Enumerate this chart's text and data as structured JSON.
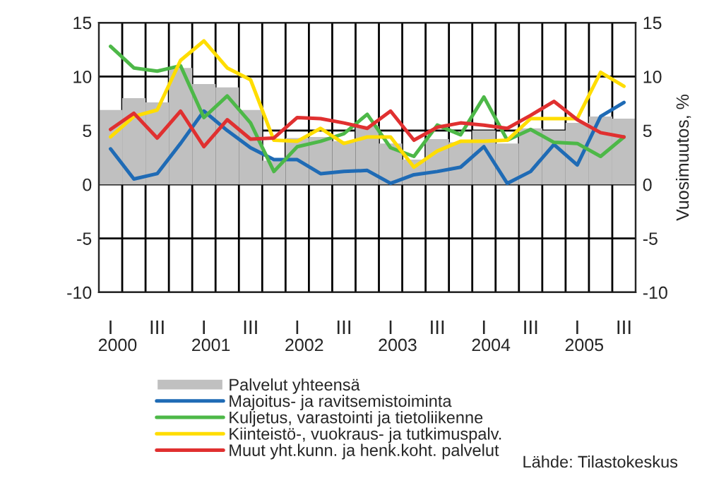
{
  "chart_data": {
    "type": "line",
    "y2label": "Vuosimuutos, %",
    "categories": [
      "I",
      null,
      "III",
      null,
      "I",
      null,
      "III",
      null,
      "I",
      null,
      "III",
      null,
      "I",
      null,
      "III",
      null,
      "I",
      null,
      "III",
      null,
      "I",
      null,
      "III"
    ],
    "series": [
      {
        "name": "Palvelut yhteensä",
        "type": "bar",
        "color": "#c0c0c0",
        "values": [
          6.9,
          8.0,
          7.6,
          10.8,
          9.3,
          9.0,
          6.9,
          2.2,
          4.3,
          4.4,
          4.0,
          5.4,
          3.8,
          2.3,
          4.2,
          3.9,
          5.0,
          3.8,
          5.2,
          5.0,
          5.7,
          6.3,
          6.1
        ]
      },
      {
        "name": "Majoitus- ja ravitsemistoiminta",
        "color": "#1f6bb5",
        "values": [
          3.3,
          0.5,
          1.0,
          3.8,
          6.8,
          5.0,
          3.4,
          2.3,
          2.3,
          1.0,
          1.2,
          1.3,
          0.1,
          0.9,
          1.2,
          1.6,
          3.5,
          0.1,
          1.2,
          3.7,
          1.8,
          6.3,
          7.6
        ]
      },
      {
        "name": "Kuljetus, varastointi ja tietoliikenne",
        "color": "#4db848",
        "values": [
          12.8,
          10.8,
          10.5,
          11.0,
          6.2,
          8.2,
          5.7,
          1.2,
          3.5,
          4.0,
          4.7,
          6.5,
          3.4,
          2.6,
          5.5,
          4.6,
          8.1,
          4.1,
          5.1,
          3.9,
          3.8,
          2.6,
          4.4
        ]
      },
      {
        "name": "Kiinteistö-, vuokraus- ja tutkimuspalv.",
        "color": "#ffdd00",
        "values": [
          4.4,
          6.3,
          6.9,
          11.5,
          13.3,
          10.8,
          9.7,
          4.1,
          4.0,
          5.2,
          3.8,
          4.4,
          4.4,
          1.6,
          3.1,
          4.0,
          4.0,
          4.1,
          6.1,
          6.1,
          6.1,
          10.4,
          9.1
        ]
      },
      {
        "name": "Muut yht.kunn. ja henk.koht. palvelut",
        "color": "#e03030",
        "values": [
          5.1,
          6.6,
          4.3,
          6.8,
          3.5,
          6.0,
          4.2,
          4.3,
          6.2,
          6.1,
          5.7,
          5.2,
          6.8,
          4.1,
          5.3,
          5.7,
          5.5,
          5.2,
          6.4,
          7.7,
          6.0,
          4.8,
          4.4
        ]
      }
    ],
    "ylim": [
      -10,
      15
    ],
    "yticks": [
      -10,
      -5,
      0,
      5,
      10,
      15
    ],
    "y2lim": [
      -10,
      15
    ],
    "y2ticks": [
      -10,
      -5,
      0,
      5,
      10,
      15
    ],
    "grid": true,
    "legend": "bottom",
    "line_style": "solid",
    "marker": "none",
    "annotations": [
      "2000",
      "2001",
      "2002",
      "2003",
      "2004",
      "2005",
      "Lähde: Tilastokeskus"
    ]
  }
}
